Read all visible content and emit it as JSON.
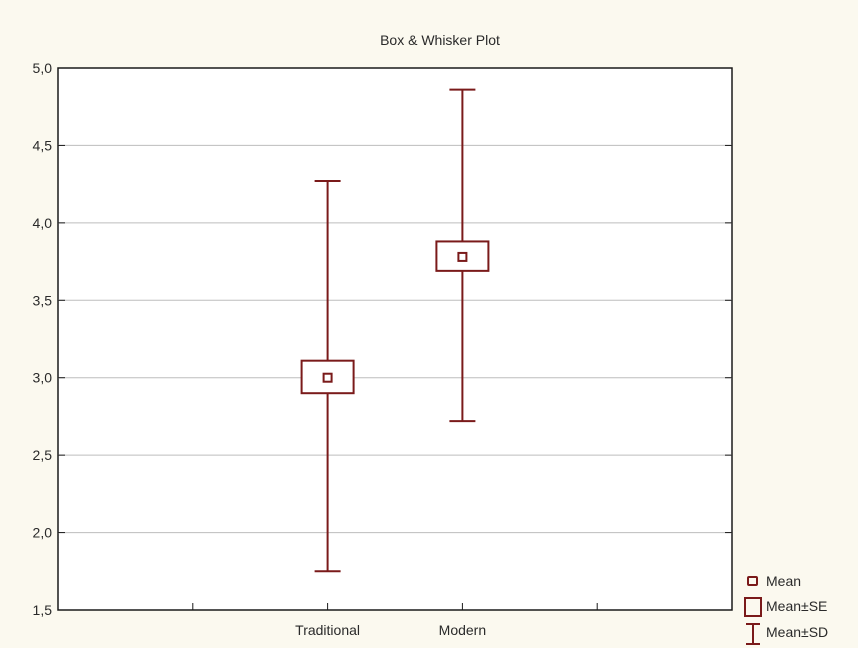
{
  "chart_data": {
    "type": "box",
    "title": "Box & Whisker Plot",
    "xlabel": "",
    "ylabel": "",
    "categories": [
      "Traditional",
      "Modern"
    ],
    "ylim": [
      1.5,
      5.0
    ],
    "yticks": [
      "1,5",
      "2,0",
      "2,5",
      "3,0",
      "3,5",
      "4,0",
      "4,5",
      "5,0"
    ],
    "ytick_values": [
      1.5,
      2.0,
      2.5,
      3.0,
      3.5,
      4.0,
      4.5,
      5.0
    ],
    "grid": true,
    "legend_position": "bottom-right",
    "legend": [
      "Mean",
      "Mean±SE",
      "Mean±SD"
    ],
    "series": [
      {
        "category": "Traditional",
        "mean": 3.0,
        "se_low": 2.9,
        "se_high": 3.11,
        "sd_low": 1.75,
        "sd_high": 4.27
      },
      {
        "category": "Modern",
        "mean": 3.78,
        "se_low": 3.69,
        "se_high": 3.88,
        "sd_low": 2.72,
        "sd_high": 4.86
      }
    ],
    "color": "#7a1a1a"
  }
}
